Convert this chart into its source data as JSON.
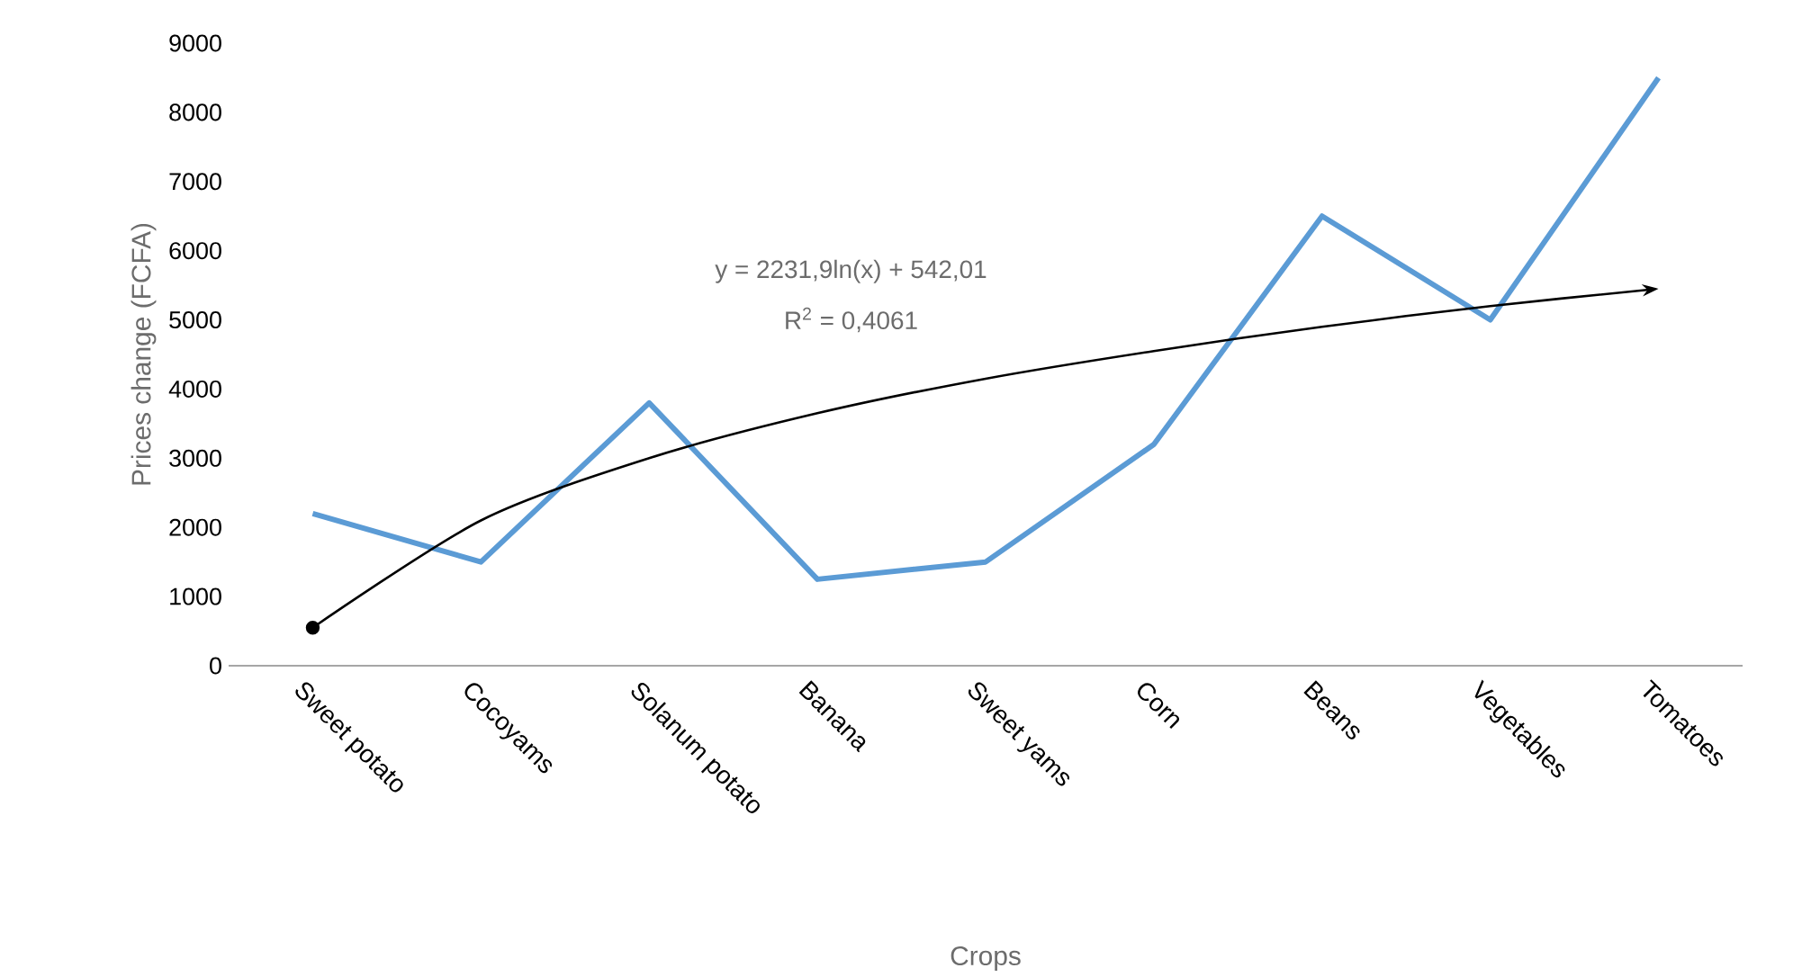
{
  "chart_data": {
    "type": "line",
    "xlabel": "Crops",
    "ylabel": "Prices change (FCFA)",
    "categories": [
      "Sweet potato",
      "Cocoyams",
      "Solanum potato",
      "Banana",
      "Sweet yams",
      "Corn",
      "Beans",
      "Vegetables",
      "Tomatoes"
    ],
    "series": [
      {
        "color": "#5b9bd5",
        "values": [
          2200,
          1500,
          3800,
          1250,
          1500,
          3200,
          6500,
          5000,
          8500
        ]
      },
      {
        "type": "line",
        "color": "#000000",
        "x": [
          "Sweet potato",
          "Cocoyams",
          "Solanum potato",
          "Banana",
          "Sweet yams",
          "Corn",
          "Beans",
          "Vegetables",
          "Tomatoes"
        ],
        "values": [
          550,
          2100,
          3000,
          3650,
          4150,
          4550,
          4900,
          5200,
          5450
        ]
      }
    ],
    "ylim": [
      0,
      9000
    ],
    "yticks": [
      0,
      1000,
      2000,
      3000,
      4000,
      5000,
      6000,
      7000,
      8000,
      9000
    ],
    "annotations": [
      "y = 2231,9ln(x) + 542,01",
      "R$^{2}$ = 0,4061"
    ]
  }
}
